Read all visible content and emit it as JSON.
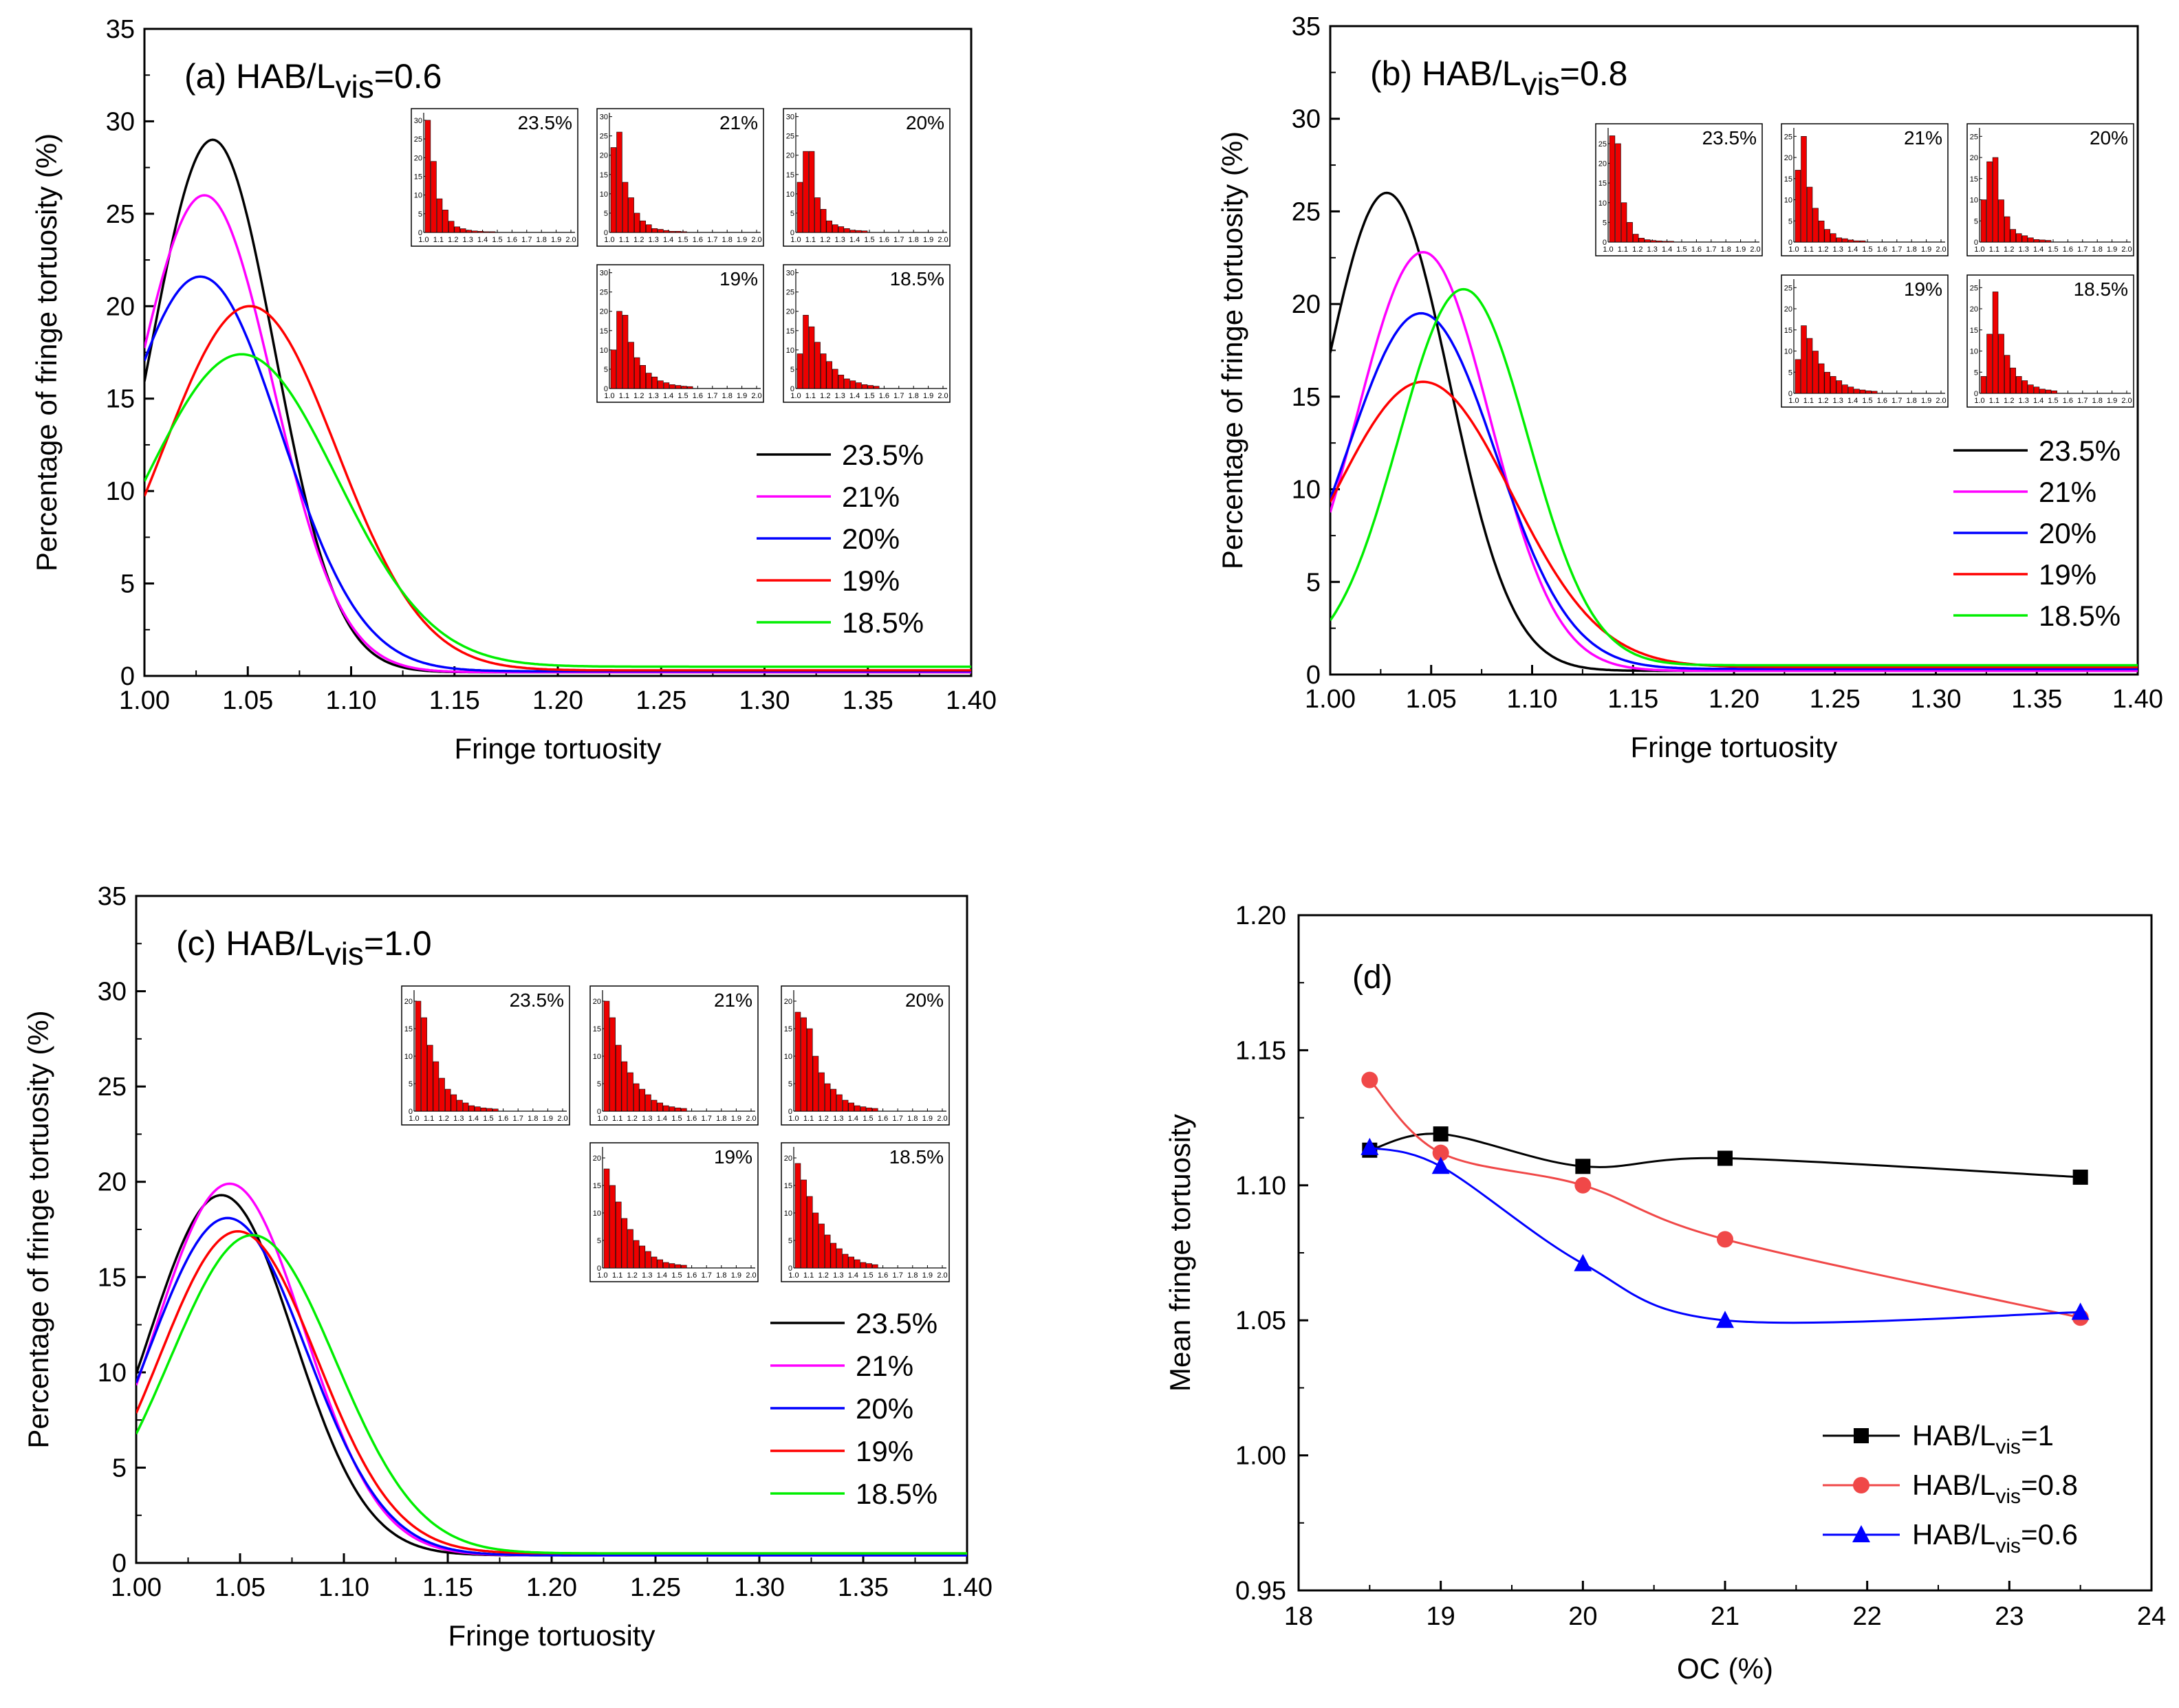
{
  "colors": {
    "c235": "#000000",
    "c21": "#ff00ff",
    "c20": "#0000ff",
    "c19": "#ff0000",
    "c185": "#00ee00",
    "hist": "#ee0000",
    "hab1": "#000000",
    "hab08": "#f04848",
    "hab06": "#0000ff"
  },
  "chart_data": [
    {
      "id": "a",
      "type": "line",
      "title_prefix": "(a) HAB/L",
      "title_sub": "vis",
      "title_suffix": "=0.6",
      "xlabel": "Fringe tortuosity",
      "ylabel": "Percentage of fringe tortuosity (%)",
      "xlim": [
        1.0,
        1.4
      ],
      "ylim": [
        0,
        35
      ],
      "xticks": [
        "1.00",
        "1.05",
        "1.10",
        "1.15",
        "1.20",
        "1.25",
        "1.30",
        "1.35",
        "1.40"
      ],
      "yticks": [
        "0",
        "5",
        "10",
        "15",
        "20",
        "25",
        "30",
        "35"
      ],
      "series": [
        {
          "name": "23.5%",
          "color": "c235",
          "peak_x": 1.033,
          "peak_y": 29.0,
          "sigma": 0.03,
          "floor": 0.2
        },
        {
          "name": "21%",
          "color": "c21",
          "peak_x": 1.029,
          "peak_y": 26.0,
          "sigma": 0.033,
          "floor": 0.2
        },
        {
          "name": "20%",
          "color": "c20",
          "peak_x": 1.027,
          "peak_y": 21.6,
          "sigma": 0.039,
          "floor": 0.25
        },
        {
          "name": "19%",
          "color": "c19",
          "peak_x": 1.051,
          "peak_y": 20.0,
          "sigma": 0.042,
          "floor": 0.3
        },
        {
          "name": "18.5%",
          "color": "c185",
          "peak_x": 1.047,
          "peak_y": 17.4,
          "sigma": 0.046,
          "floor": 0.5
        }
      ],
      "insets": [
        {
          "label": "23.5%",
          "values": [
            30,
            19,
            9,
            6,
            3,
            1.5,
            1,
            0.6,
            0.4,
            0.3,
            0.2,
            0.2
          ],
          "yticks": [
            "0",
            "5",
            "10",
            "15",
            "20",
            "25",
            "30"
          ],
          "ymax": 32
        },
        {
          "label": "21%",
          "values": [
            22,
            26,
            13,
            9,
            5,
            3,
            2,
            1,
            0.8,
            0.5,
            0.3,
            0.3,
            0.2
          ],
          "yticks": [
            "0",
            "5",
            "10",
            "15",
            "20",
            "25",
            "30"
          ],
          "ymax": 31
        },
        {
          "label": "20%",
          "values": [
            13,
            21,
            21,
            9,
            6,
            3,
            2,
            1.5,
            1,
            0.6,
            0.5,
            0.4
          ],
          "yticks": [
            "0",
            "5",
            "10",
            "15",
            "20",
            "25",
            "30"
          ],
          "ymax": 31
        },
        {
          "label": "19%",
          "values": [
            10,
            20,
            19,
            12,
            8,
            6,
            4,
            3,
            2,
            1.5,
            1,
            0.8,
            0.6,
            0.5
          ],
          "yticks": [
            "0",
            "5",
            "10",
            "15",
            "20",
            "25",
            "30"
          ],
          "ymax": 31
        },
        {
          "label": "18.5%",
          "values": [
            9,
            19,
            16,
            12,
            9,
            7,
            5,
            3.5,
            2.5,
            2,
            1.5,
            1,
            0.8,
            0.6
          ],
          "yticks": [
            "0",
            "5",
            "10",
            "15",
            "20",
            "25",
            "30"
          ],
          "ymax": 31
        }
      ],
      "inset_xticks": [
        "1.0",
        "1.1",
        "1.2",
        "1.3",
        "1.4",
        "1.5",
        "1.6",
        "1.7",
        "1.8",
        "1.9",
        "2.0"
      ]
    },
    {
      "id": "b",
      "type": "line",
      "title_prefix": "(b) HAB/L",
      "title_sub": "vis",
      "title_suffix": "=0.8",
      "xlabel": "Fringe tortuosity",
      "ylabel": "Percentage of fringe tortuosity (%)",
      "xlim": [
        1.0,
        1.4
      ],
      "ylim": [
        0,
        35
      ],
      "xticks": [
        "1.00",
        "1.05",
        "1.10",
        "1.15",
        "1.20",
        "1.25",
        "1.30",
        "1.35",
        "1.40"
      ],
      "yticks": [
        "0",
        "5",
        "10",
        "15",
        "20",
        "25",
        "30",
        "35"
      ],
      "series": [
        {
          "name": "23.5%",
          "color": "c235",
          "peak_x": 1.028,
          "peak_y": 26.0,
          "sigma": 0.031,
          "floor": 0.2
        },
        {
          "name": "21%",
          "color": "c21",
          "peak_x": 1.046,
          "peak_y": 22.8,
          "sigma": 0.033,
          "floor": 0.2
        },
        {
          "name": "20%",
          "color": "c20",
          "peak_x": 1.045,
          "peak_y": 19.5,
          "sigma": 0.037,
          "floor": 0.3
        },
        {
          "name": "19%",
          "color": "c19",
          "peak_x": 1.046,
          "peak_y": 15.8,
          "sigma": 0.044,
          "floor": 0.4
        },
        {
          "name": "18.5%",
          "color": "c185",
          "peak_x": 1.066,
          "peak_y": 20.8,
          "sigma": 0.032,
          "floor": 0.5
        }
      ],
      "insets": [
        {
          "label": "23.5%",
          "values": [
            27,
            25,
            10,
            5,
            2,
            1,
            0.6,
            0.4,
            0.3,
            0.2,
            0.2
          ],
          "yticks": [
            "0",
            "5",
            "10",
            "15",
            "20",
            "25"
          ],
          "ymax": 29
        },
        {
          "label": "21%",
          "values": [
            17,
            25,
            13,
            8,
            5,
            3,
            2,
            1,
            0.8,
            0.5,
            0.3,
            0.3
          ],
          "yticks": [
            "0",
            "5",
            "10",
            "15",
            "20",
            "25"
          ],
          "ymax": 27
        },
        {
          "label": "20%",
          "values": [
            10,
            19,
            20,
            10,
            6,
            3,
            2,
            1.5,
            1,
            0.6,
            0.5,
            0.4
          ],
          "yticks": [
            "0",
            "5",
            "10",
            "15",
            "20",
            "25"
          ],
          "ymax": 27
        },
        {
          "label": "19%",
          "values": [
            8,
            16,
            13,
            10,
            7,
            5,
            4,
            3,
            2,
            1.5,
            1,
            0.8,
            0.6,
            0.5
          ],
          "yticks": [
            "0",
            "5",
            "10",
            "15",
            "20",
            "25"
          ],
          "ymax": 27
        },
        {
          "label": "18.5%",
          "values": [
            4,
            14,
            24,
            14,
            9,
            6,
            4,
            3,
            2,
            1.5,
            1,
            0.8,
            0.6
          ],
          "yticks": [
            "0",
            "5",
            "10",
            "15",
            "20",
            "25"
          ],
          "ymax": 27
        }
      ],
      "inset_xticks": [
        "1.0",
        "1.1",
        "1.2",
        "1.3",
        "1.4",
        "1.5",
        "1.6",
        "1.7",
        "1.8",
        "1.9",
        "2.0"
      ]
    },
    {
      "id": "c",
      "type": "line",
      "title_prefix": "(c) HAB/L",
      "title_sub": "vis",
      "title_suffix": "=1.0",
      "xlabel": "Fringe tortuosity",
      "ylabel": "Percentage of fringe tortuosity (%)",
      "xlim": [
        1.0,
        1.4
      ],
      "ylim": [
        0,
        35
      ],
      "xticks": [
        "1.00",
        "1.05",
        "1.10",
        "1.15",
        "1.20",
        "1.25",
        "1.30",
        "1.35",
        "1.40"
      ],
      "yticks": [
        "0",
        "5",
        "10",
        "15",
        "20",
        "25",
        "30",
        "35"
      ],
      "series": [
        {
          "name": "23.5%",
          "color": "c235",
          "peak_x": 1.041,
          "peak_y": 19.3,
          "sigma": 0.035,
          "floor": 0.4
        },
        {
          "name": "21%",
          "color": "c21",
          "peak_x": 1.045,
          "peak_y": 19.9,
          "sigma": 0.036,
          "floor": 0.4
        },
        {
          "name": "20%",
          "color": "c20",
          "peak_x": 1.044,
          "peak_y": 18.1,
          "sigma": 0.038,
          "floor": 0.4
        },
        {
          "name": "19%",
          "color": "c19",
          "peak_x": 1.049,
          "peak_y": 17.4,
          "sigma": 0.038,
          "floor": 0.5
        },
        {
          "name": "18.5%",
          "color": "c185",
          "peak_x": 1.056,
          "peak_y": 17.2,
          "sigma": 0.04,
          "floor": 0.5
        }
      ],
      "insets": [
        {
          "label": "23.5%",
          "values": [
            20,
            17,
            12,
            9,
            6,
            4,
            3,
            2,
            1.5,
            1,
            0.8,
            0.6,
            0.5,
            0.4
          ],
          "yticks": [
            "0",
            "5",
            "10",
            "15",
            "20"
          ],
          "ymax": 22
        },
        {
          "label": "21%",
          "values": [
            20,
            17,
            12,
            9,
            7,
            5,
            4,
            3,
            2,
            1.5,
            1,
            0.8,
            0.6,
            0.5
          ],
          "yticks": [
            "0",
            "5",
            "10",
            "15",
            "20"
          ],
          "ymax": 22
        },
        {
          "label": "20%",
          "values": [
            18,
            17,
            15,
            10,
            7,
            5,
            4,
            3,
            2,
            1.5,
            1,
            0.8,
            0.6,
            0.5
          ],
          "yticks": [
            "0",
            "5",
            "10",
            "15",
            "20"
          ],
          "ymax": 22
        },
        {
          "label": "19%",
          "values": [
            18,
            15,
            12,
            9,
            7,
            5,
            4,
            3,
            2,
            1.5,
            1,
            0.8,
            0.6,
            0.5
          ],
          "yticks": [
            "0",
            "5",
            "10",
            "15",
            "20"
          ],
          "ymax": 22
        },
        {
          "label": "18.5%",
          "values": [
            19,
            16,
            13,
            10,
            8,
            6,
            4.5,
            3.5,
            2.5,
            2,
            1.5,
            1,
            0.8,
            0.6
          ],
          "yticks": [
            "0",
            "5",
            "10",
            "15",
            "20"
          ],
          "ymax": 22
        }
      ],
      "inset_xticks": [
        "1.0",
        "1.1",
        "1.2",
        "1.3",
        "1.4",
        "1.5",
        "1.6",
        "1.7",
        "1.8",
        "1.9",
        "2.0"
      ]
    },
    {
      "id": "d",
      "type": "line",
      "title": "(d)",
      "xlabel": "OC (%)",
      "ylabel": "Mean fringe tortuosity",
      "xlim": [
        18,
        24
      ],
      "ylim": [
        0.95,
        1.2
      ],
      "xticks": [
        "18",
        "19",
        "20",
        "21",
        "22",
        "23",
        "24"
      ],
      "yticks": [
        "0.95",
        "1.00",
        "1.05",
        "1.10",
        "1.15",
        "1.20"
      ],
      "x": [
        18.5,
        19,
        20,
        21,
        23.5
      ],
      "series": [
        {
          "name_prefix": "HAB/L",
          "name_sub": "vis",
          "name_suffix": "=1",
          "color": "hab1",
          "marker": "square",
          "values": [
            1.113,
            1.119,
            1.107,
            1.11,
            1.103
          ]
        },
        {
          "name_prefix": "HAB/L",
          "name_sub": "vis",
          "name_suffix": "=0.8",
          "color": "hab08",
          "marker": "circle",
          "values": [
            1.139,
            1.112,
            1.1,
            1.08,
            1.051
          ]
        },
        {
          "name_prefix": "HAB/L",
          "name_sub": "vis",
          "name_suffix": "=0.6",
          "color": "hab06",
          "marker": "triangle",
          "values": [
            1.114,
            1.107,
            1.071,
            1.05,
            1.053
          ]
        }
      ]
    }
  ]
}
